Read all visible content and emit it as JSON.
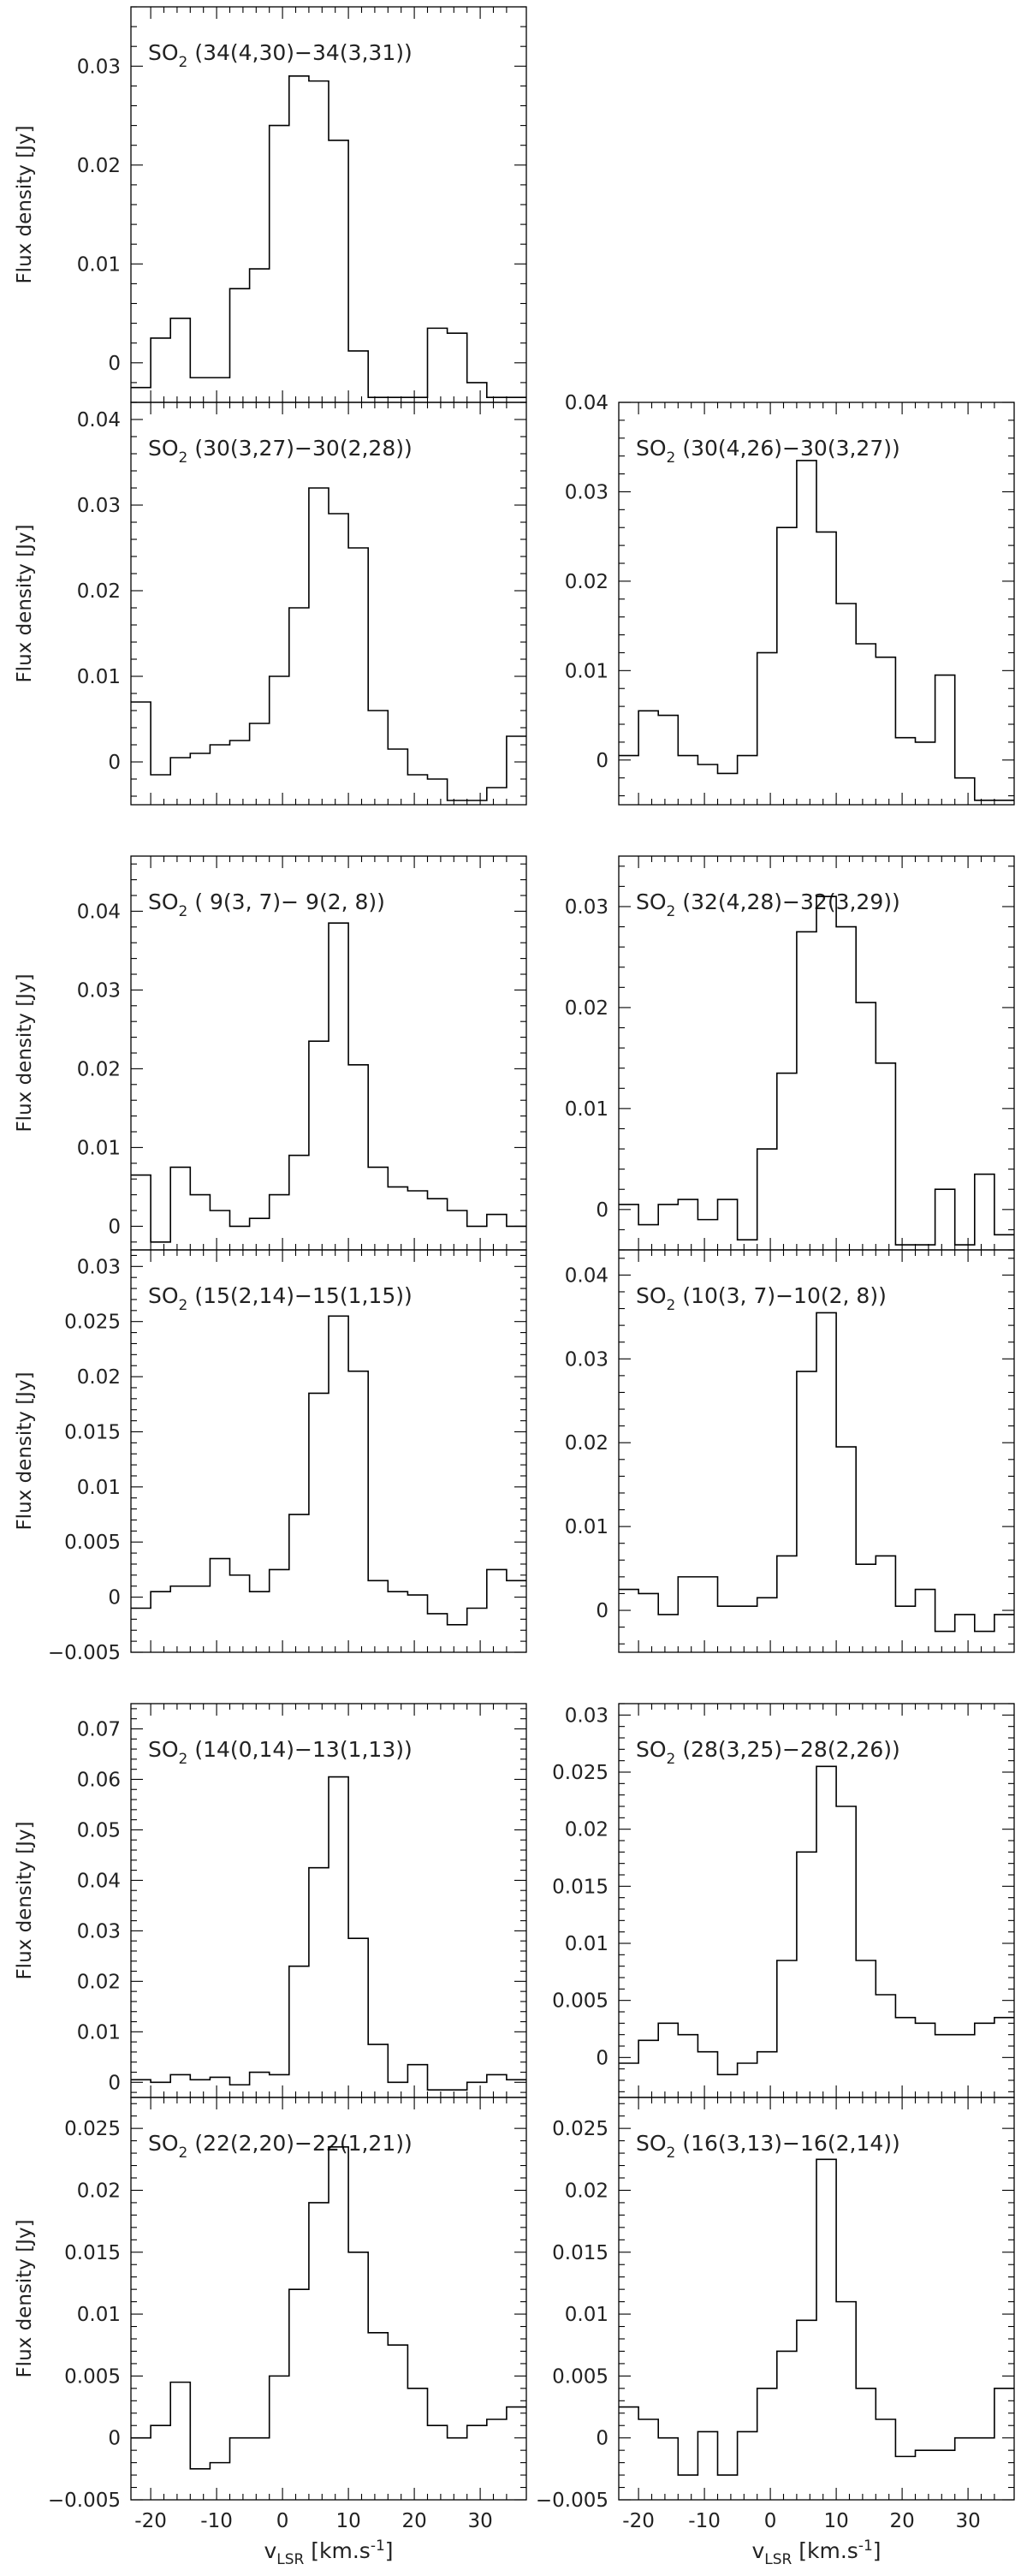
{
  "common": {
    "ylabel": "Flux density [Jy]",
    "xlabel_main": "v",
    "xlabel_sub": "LSR",
    "xlabel_unit": " [km.s",
    "xlabel_exp": "-1",
    "xlabel_close": "]",
    "title_prefix": "SO",
    "title_sub": "2",
    "xlim": [
      -23,
      37
    ],
    "xticks": [
      -20,
      -10,
      0,
      10,
      20,
      30
    ],
    "x_edges": [
      -23,
      -20,
      -17,
      -14,
      -11,
      -8,
      -5,
      -2,
      1,
      4,
      7,
      10,
      13,
      16,
      19,
      22,
      25,
      28,
      31,
      34,
      37
    ]
  },
  "chart_data": [
    {
      "type": "line",
      "title": "(34(4,30)−34(3,31))",
      "ylim": [
        -0.004,
        0.036
      ],
      "yticks": [
        0,
        0.01,
        0.02,
        0.03
      ],
      "ytick_labels": [
        "0",
        "0.01",
        "0.02",
        "0.03"
      ],
      "values": [
        -0.0025,
        0.0025,
        0.0045,
        -0.0015,
        -0.0015,
        0.0075,
        0.0095,
        0.024,
        0.029,
        0.0285,
        0.0225,
        0.0012,
        -0.0035,
        -0.0035,
        -0.0035,
        0.0035,
        0.003,
        -0.002,
        -0.0035,
        -0.0035
      ]
    },
    null,
    {
      "type": "line",
      "title": "(30(3,27)−30(2,28))",
      "ylim": [
        -0.005,
        0.042
      ],
      "yticks": [
        0,
        0.01,
        0.02,
        0.03,
        0.04
      ],
      "ytick_labels": [
        "0",
        "0.01",
        "0.02",
        "0.03",
        "0.04"
      ],
      "values": [
        0.007,
        -0.0015,
        0.0005,
        0.001,
        0.002,
        0.0025,
        0.0045,
        0.01,
        0.018,
        0.032,
        0.029,
        0.025,
        0.006,
        0.0015,
        -0.0015,
        -0.002,
        -0.0045,
        -0.0045,
        -0.003,
        0.003
      ]
    },
    {
      "type": "line",
      "title": "(30(4,26)−30(3,27))",
      "ylim": [
        -0.005,
        0.04
      ],
      "yticks": [
        0,
        0.01,
        0.02,
        0.03,
        0.04
      ],
      "ytick_labels": [
        "0",
        "0.01",
        "0.02",
        "0.03",
        "0.04"
      ],
      "values": [
        0.0005,
        0.0055,
        0.005,
        0.0005,
        -0.0005,
        -0.0015,
        0.0005,
        0.012,
        0.026,
        0.0335,
        0.0255,
        0.0175,
        0.013,
        0.0115,
        0.0025,
        0.002,
        0.0095,
        -0.002,
        -0.0045,
        -0.0045
      ]
    },
    {
      "type": "line",
      "title": "( 9(3, 7)− 9(2, 8))",
      "ylim": [
        -0.003,
        0.047
      ],
      "yticks": [
        0,
        0.01,
        0.02,
        0.03,
        0.04
      ],
      "ytick_labels": [
        "0",
        "0.01",
        "0.02",
        "0.03",
        "0.04"
      ],
      "values": [
        0.0065,
        -0.002,
        0.0075,
        0.004,
        0.002,
        0.0,
        0.001,
        0.004,
        0.009,
        0.0235,
        0.0385,
        0.0205,
        0.0075,
        0.005,
        0.0045,
        0.0035,
        0.002,
        0.0,
        0.0015,
        0.0
      ]
    },
    {
      "type": "line",
      "title": "(32(4,28)−32(3,29))",
      "ylim": [
        -0.004,
        0.035
      ],
      "yticks": [
        0,
        0.01,
        0.02,
        0.03
      ],
      "ytick_labels": [
        "0",
        "0.01",
        "0.02",
        "0.03"
      ],
      "values": [
        0.0005,
        -0.0015,
        0.0005,
        0.001,
        -0.001,
        0.001,
        -0.003,
        0.006,
        0.0135,
        0.0275,
        0.031,
        0.028,
        0.0205,
        0.0145,
        -0.0035,
        -0.0035,
        0.002,
        -0.0035,
        0.0035,
        -0.0025
      ]
    },
    {
      "type": "line",
      "title": "(15(2,14)−15(1,15))",
      "ylim": [
        -0.005,
        0.0315
      ],
      "yticks": [
        -0.005,
        0,
        0.005,
        0.01,
        0.015,
        0.02,
        0.025,
        0.03
      ],
      "ytick_labels": [
        "−0.005",
        "0",
        "0.005",
        "0.01",
        "0.015",
        "0.02",
        "0.025",
        "0.03"
      ],
      "values": [
        -0.001,
        0.0005,
        0.001,
        0.001,
        0.0035,
        0.002,
        0.0005,
        0.0025,
        0.0075,
        0.0185,
        0.0255,
        0.0205,
        0.0015,
        0.0005,
        0.0002,
        -0.0015,
        -0.0025,
        -0.001,
        0.0025,
        0.0015
      ]
    },
    {
      "type": "line",
      "title": "(10(3, 7)−10(2, 8))",
      "ylim": [
        -0.005,
        0.043
      ],
      "yticks": [
        0,
        0.01,
        0.02,
        0.03,
        0.04
      ],
      "ytick_labels": [
        "0",
        "0.01",
        "0.02",
        "0.03",
        "0.04"
      ],
      "values": [
        0.0025,
        0.002,
        -0.0005,
        0.004,
        0.004,
        0.0005,
        0.0005,
        0.0015,
        0.0065,
        0.0285,
        0.0355,
        0.0195,
        0.0055,
        0.0065,
        0.0005,
        0.0025,
        -0.0025,
        -0.0005,
        -0.0025,
        -0.0005
      ]
    },
    {
      "type": "line",
      "title": "(14(0,14)−13(1,13))",
      "ylim": [
        -0.003,
        0.075
      ],
      "yticks": [
        0,
        0.01,
        0.02,
        0.03,
        0.04,
        0.05,
        0.06,
        0.07
      ],
      "ytick_labels": [
        "0",
        "0.01",
        "0.02",
        "0.03",
        "0.04",
        "0.05",
        "0.06",
        "0.07"
      ],
      "values": [
        0.0005,
        0.0,
        0.0015,
        0.0005,
        0.001,
        -0.0005,
        0.002,
        0.0015,
        0.023,
        0.0425,
        0.0605,
        0.0285,
        0.0075,
        0.0,
        0.0035,
        -0.0015,
        -0.0015,
        0.0,
        0.0015,
        0.0005
      ]
    },
    {
      "type": "line",
      "title": "(28(3,25)−28(2,26))",
      "ylim": [
        -0.0035,
        0.031
      ],
      "yticks": [
        0,
        0.005,
        0.01,
        0.015,
        0.02,
        0.025,
        0.03
      ],
      "ytick_labels": [
        "0",
        "0.005",
        "0.01",
        "0.015",
        "0.02",
        "0.025",
        "0.03"
      ],
      "values": [
        -0.0005,
        0.0015,
        0.003,
        0.002,
        0.0005,
        -0.0015,
        -0.0005,
        0.0005,
        0.0085,
        0.018,
        0.0255,
        0.022,
        0.0085,
        0.0055,
        0.0035,
        0.003,
        0.002,
        0.002,
        0.003,
        0.0035
      ]
    },
    {
      "type": "line",
      "title": "(22(2,20)−22(1,21))",
      "ylim": [
        -0.005,
        0.0275
      ],
      "yticks": [
        -0.005,
        0,
        0.005,
        0.01,
        0.015,
        0.02,
        0.025
      ],
      "ytick_labels": [
        "−0.005",
        "0",
        "0.005",
        "0.01",
        "0.015",
        "0.02",
        "0.025"
      ],
      "values": [
        0.0,
        0.001,
        0.0045,
        -0.0025,
        -0.002,
        0.0,
        0.0,
        0.005,
        0.012,
        0.019,
        0.0235,
        0.015,
        0.0085,
        0.0075,
        0.004,
        0.001,
        0.0,
        0.001,
        0.0015,
        0.0025
      ]
    },
    {
      "type": "line",
      "title": "(16(3,13)−16(2,14))",
      "ylim": [
        -0.005,
        0.0275
      ],
      "yticks": [
        -0.005,
        0,
        0.005,
        0.01,
        0.015,
        0.02,
        0.025
      ],
      "ytick_labels": [
        "−0.005",
        "0",
        "0.005",
        "0.01",
        "0.015",
        "0.02",
        "0.025"
      ],
      "values": [
        0.0025,
        0.0015,
        0.0,
        -0.003,
        0.0005,
        -0.003,
        0.0005,
        0.004,
        0.007,
        0.0095,
        0.0225,
        0.011,
        0.004,
        0.0015,
        -0.0015,
        -0.001,
        -0.001,
        0.0,
        0.0,
        0.004
      ]
    }
  ]
}
